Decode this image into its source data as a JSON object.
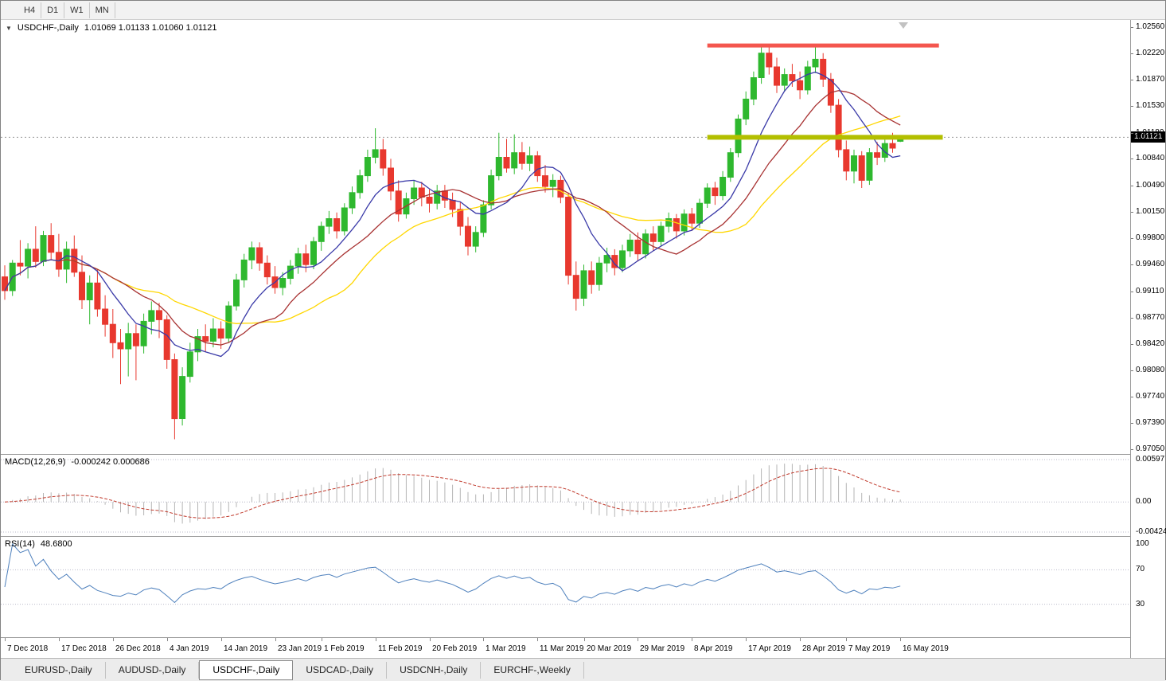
{
  "toolbar": {
    "buttons": [
      "H4",
      "D1",
      "W1",
      "MN"
    ]
  },
  "chart_title": {
    "dropdown_icon": "▼",
    "symbol": "USDCHF-,Daily",
    "ohlc": "1.01069 1.01133 1.01060 1.01121"
  },
  "price_axis": {
    "ticks": [
      "1.02560",
      "1.02220",
      "1.01870",
      "1.01530",
      "1.01180",
      "1.00840",
      "1.00490",
      "1.00150",
      "0.99800",
      "0.99460",
      "0.99110",
      "0.98770",
      "0.98420",
      "0.98080",
      "0.97740",
      "0.97390",
      "0.97050"
    ],
    "current_price": "1.01121"
  },
  "macd_panel": {
    "name": "MACD(12,26,9)",
    "values": "-0.000242 0.000686",
    "axis": [
      "0.00597",
      "0.00",
      "-0.00424"
    ]
  },
  "rsi_panel": {
    "name": "RSI(14)",
    "value": "48.6800",
    "axis": [
      "100",
      "70",
      "30"
    ]
  },
  "tabs": [
    {
      "label": "EURUSD-,Daily",
      "active": false
    },
    {
      "label": "AUDUSD-,Daily",
      "active": false
    },
    {
      "label": "USDCHF-,Daily",
      "active": true
    },
    {
      "label": "USDCAD-,Daily",
      "active": false
    },
    {
      "label": "USDCNH-,Daily",
      "active": false
    },
    {
      "label": "EURCHF-,Weekly",
      "active": false
    }
  ],
  "colors": {
    "bull": "#2eb82e",
    "bear": "#e8382e",
    "resistance": "#f4564e",
    "support": "#b3bf00",
    "ma_blue": "#3a3aa8",
    "ma_red": "#a83232",
    "ma_yellow": "#ffd700",
    "rsi": "#4f81bd",
    "macd_signal": "#c0392b",
    "macd_histogram": "#b5b5b5",
    "grid": "#b9b9c9"
  },
  "chart_data": {
    "type": "candlestick",
    "title": "USDCHF-,Daily",
    "symbol": "USDCHF",
    "timeframe": "Daily",
    "current_price": 1.01121,
    "last_ohlc": {
      "open": 1.01069,
      "high": 1.01133,
      "low": 1.0106,
      "close": 1.01121
    },
    "ylim": [
      0.9705,
      1.0256
    ],
    "grid": "current-price-line-only",
    "candles": [
      [
        0.993,
        0.9945,
        0.99,
        0.9912
      ],
      [
        0.9912,
        0.9952,
        0.9905,
        0.9948
      ],
      [
        0.9948,
        0.9978,
        0.9932,
        0.9944
      ],
      [
        0.9944,
        0.9974,
        0.9928,
        0.9966
      ],
      [
        0.9966,
        0.9996,
        0.9942,
        0.995
      ],
      [
        0.995,
        0.999,
        0.9944,
        0.9984
      ],
      [
        0.9984,
        1.0,
        0.9952,
        0.9962
      ],
      [
        0.9962,
        0.9986,
        0.993,
        0.994
      ],
      [
        0.994,
        0.9976,
        0.9922,
        0.9966
      ],
      [
        0.9966,
        0.9984,
        0.993,
        0.9936
      ],
      [
        0.9936,
        0.9958,
        0.9888,
        0.99
      ],
      [
        0.99,
        0.9932,
        0.9868,
        0.9922
      ],
      [
        0.9922,
        0.994,
        0.9878,
        0.9888
      ],
      [
        0.9888,
        0.9906,
        0.9852,
        0.9868
      ],
      [
        0.9868,
        0.9888,
        0.9824,
        0.9844
      ],
      [
        0.9844,
        0.9862,
        0.979,
        0.9836
      ],
      [
        0.9836,
        0.987,
        0.98,
        0.9856
      ],
      [
        0.9856,
        0.9868,
        0.9795,
        0.984
      ],
      [
        0.984,
        0.9882,
        0.983,
        0.9872
      ],
      [
        0.9872,
        0.9898,
        0.9855,
        0.9886
      ],
      [
        0.9886,
        0.9896,
        0.985,
        0.9874
      ],
      [
        0.9874,
        0.988,
        0.981,
        0.9822
      ],
      [
        0.9822,
        0.983,
        0.9718,
        0.9745
      ],
      [
        0.9745,
        0.9812,
        0.9736,
        0.98
      ],
      [
        0.98,
        0.9844,
        0.9792,
        0.9832
      ],
      [
        0.9832,
        0.9862,
        0.982,
        0.9852
      ],
      [
        0.9852,
        0.9868,
        0.9832,
        0.9846
      ],
      [
        0.9846,
        0.9876,
        0.9838,
        0.9862
      ],
      [
        0.9862,
        0.9872,
        0.9836,
        0.985
      ],
      [
        0.985,
        0.9898,
        0.9844,
        0.9892
      ],
      [
        0.9892,
        0.9934,
        0.9886,
        0.9926
      ],
      [
        0.9926,
        0.996,
        0.9916,
        0.9952
      ],
      [
        0.9952,
        0.9976,
        0.994,
        0.9968
      ],
      [
        0.9968,
        0.9975,
        0.9938,
        0.9948
      ],
      [
        0.9948,
        0.9958,
        0.992,
        0.993
      ],
      [
        0.993,
        0.9944,
        0.9908,
        0.9916
      ],
      [
        0.9916,
        0.9936,
        0.9906,
        0.9928
      ],
      [
        0.9928,
        0.9952,
        0.992,
        0.9944
      ],
      [
        0.9944,
        0.9968,
        0.9934,
        0.996
      ],
      [
        0.996,
        0.9972,
        0.9936,
        0.9946
      ],
      [
        0.9946,
        0.9982,
        0.994,
        0.9976
      ],
      [
        0.9976,
        1.0002,
        0.9964,
        0.9996
      ],
      [
        0.9996,
        1.0016,
        0.9986,
        1.0006
      ],
      [
        1.0006,
        1.0014,
        0.998,
        0.999
      ],
      [
        0.999,
        1.0026,
        0.9984,
        1.002
      ],
      [
        1.002,
        1.0048,
        1.0012,
        1.004
      ],
      [
        1.004,
        1.007,
        1.0032,
        1.0062
      ],
      [
        1.0062,
        1.0096,
        1.0054,
        1.0086
      ],
      [
        1.0086,
        1.0124,
        1.0078,
        1.0096
      ],
      [
        1.0096,
        1.011,
        1.0062,
        1.0072
      ],
      [
        1.0072,
        1.0084,
        1.003,
        1.0042
      ],
      [
        1.0042,
        1.0056,
        1.0002,
        1.0012
      ],
      [
        1.0012,
        1.004,
        1.0006,
        1.0032
      ],
      [
        1.0032,
        1.0056,
        1.0024,
        1.0046
      ],
      [
        1.0046,
        1.0054,
        1.0022,
        1.0034
      ],
      [
        1.0034,
        1.0044,
        1.0014,
        1.0026
      ],
      [
        1.0026,
        1.005,
        1.0018,
        1.0042
      ],
      [
        1.0042,
        1.005,
        1.002,
        1.003
      ],
      [
        1.003,
        1.004,
        1.0008,
        1.0018
      ],
      [
        1.0018,
        1.0028,
        0.9984,
        0.9996
      ],
      [
        0.9996,
        1.0008,
        0.9958,
        0.997
      ],
      [
        0.997,
        0.9996,
        0.9962,
        0.9988
      ],
      [
        0.9988,
        1.003,
        0.9982,
        1.0024
      ],
      [
        1.0024,
        1.007,
        1.0018,
        1.0062
      ],
      [
        1.0062,
        1.0118,
        1.0056,
        1.0086
      ],
      [
        1.0086,
        1.011,
        1.0066,
        1.0072
      ],
      [
        1.0072,
        1.0116,
        1.0064,
        1.0092
      ],
      [
        1.0092,
        1.0106,
        1.007,
        1.0078
      ],
      [
        1.0078,
        1.01,
        1.0068,
        1.0088
      ],
      [
        1.0088,
        1.0094,
        1.0054,
        1.0062
      ],
      [
        1.0062,
        1.0076,
        1.004,
        1.0048
      ],
      [
        1.0048,
        1.0064,
        1.0034,
        1.0056
      ],
      [
        1.0056,
        1.0062,
        1.0026,
        1.0034
      ],
      [
        1.0034,
        1.004,
        0.992,
        0.9932
      ],
      [
        0.9932,
        0.995,
        0.9886,
        0.9902
      ],
      [
        0.9902,
        0.9946,
        0.9892,
        0.9938
      ],
      [
        0.9938,
        0.995,
        0.9908,
        0.992
      ],
      [
        0.992,
        0.9956,
        0.9912,
        0.9948
      ],
      [
        0.9948,
        0.9968,
        0.9936,
        0.9958
      ],
      [
        0.9958,
        0.9966,
        0.9932,
        0.9942
      ],
      [
        0.9942,
        0.9972,
        0.9936,
        0.9964
      ],
      [
        0.9964,
        0.9986,
        0.9956,
        0.9978
      ],
      [
        0.9978,
        0.9988,
        0.995,
        0.996
      ],
      [
        0.996,
        0.9992,
        0.9954,
        0.9986
      ],
      [
        0.9986,
        0.9996,
        0.9964,
        0.9976
      ],
      [
        0.9976,
        1.0002,
        0.997,
        0.9996
      ],
      [
        0.9996,
        1.0014,
        0.9988,
        1.0006
      ],
      [
        1.0006,
        1.0012,
        0.998,
        0.999
      ],
      [
        0.999,
        1.0018,
        0.9984,
        1.0012
      ],
      [
        1.0012,
        1.002,
        0.999,
        1.0
      ],
      [
        1.0,
        1.0032,
        0.9994,
        1.0026
      ],
      [
        1.0026,
        1.0052,
        1.002,
        1.0046
      ],
      [
        1.0046,
        1.0054,
        1.0024,
        1.0036
      ],
      [
        1.0036,
        1.0068,
        1.003,
        1.006
      ],
      [
        1.006,
        1.0098,
        1.0054,
        1.0092
      ],
      [
        1.0092,
        1.0142,
        1.0086,
        1.0136
      ],
      [
        1.0136,
        1.0172,
        1.0128,
        1.0162
      ],
      [
        1.0162,
        1.0198,
        1.0154,
        1.019
      ],
      [
        1.019,
        1.0232,
        1.0182,
        1.0222
      ],
      [
        1.0222,
        1.023,
        1.0194,
        1.0204
      ],
      [
        1.0204,
        1.0216,
        1.017,
        1.018
      ],
      [
        1.018,
        1.0202,
        1.0172,
        1.0194
      ],
      [
        1.0194,
        1.0208,
        1.0178,
        1.0186
      ],
      [
        1.0186,
        1.0198,
        1.0162,
        1.0174
      ],
      [
        1.0174,
        1.0212,
        1.0168,
        1.0204
      ],
      [
        1.0204,
        1.023,
        1.0196,
        1.0214
      ],
      [
        1.0214,
        1.0222,
        1.0178,
        1.0188
      ],
      [
        1.0188,
        1.0196,
        1.0144,
        1.0154
      ],
      [
        1.0154,
        1.0162,
        1.0086,
        1.0096
      ],
      [
        1.0096,
        1.0108,
        1.0056,
        1.0068
      ],
      [
        1.0068,
        1.0096,
        1.0052,
        1.0088
      ],
      [
        1.0088,
        1.0094,
        1.0046,
        1.0056
      ],
      [
        1.0056,
        1.0098,
        1.005,
        1.0092
      ],
      [
        1.0092,
        1.0106,
        1.0076,
        1.0086
      ],
      [
        1.0086,
        1.011,
        1.008,
        1.0104
      ],
      [
        1.0104,
        1.0118,
        1.0092,
        1.0098
      ],
      [
        1.01069,
        1.01133,
        1.0106,
        1.01121
      ]
    ],
    "date_labels": [
      {
        "index": 0,
        "label": "7 Dec 2018"
      },
      {
        "index": 7,
        "label": "17 Dec 2018"
      },
      {
        "index": 14,
        "label": "26 Dec 2018"
      },
      {
        "index": 21,
        "label": "4 Jan 2019"
      },
      {
        "index": 28,
        "label": "14 Jan 2019"
      },
      {
        "index": 35,
        "label": "23 Jan 2019"
      },
      {
        "index": 41,
        "label": "1 Feb 2019"
      },
      {
        "index": 48,
        "label": "11 Feb 2019"
      },
      {
        "index": 55,
        "label": "20 Feb 2019"
      },
      {
        "index": 62,
        "label": "1 Mar 2019"
      },
      {
        "index": 69,
        "label": "11 Mar 2019"
      },
      {
        "index": 75,
        "label": "20 Mar 2019"
      },
      {
        "index": 82,
        "label": "29 Mar 2019"
      },
      {
        "index": 89,
        "label": "8 Apr 2019"
      },
      {
        "index": 96,
        "label": "17 Apr 2019"
      },
      {
        "index": 103,
        "label": "28 Apr 2019"
      },
      {
        "index": 109,
        "label": "7 May 2019"
      },
      {
        "index": 116,
        "label": "16 May 2019"
      }
    ],
    "overlays": {
      "resistance_line": {
        "price": 1.0232,
        "from_index": 91,
        "to_index": 121,
        "color": "#f4564e",
        "width": 5
      },
      "support_line": {
        "price": 1.01121,
        "from_index": 91,
        "to_index": 121.5,
        "color": "#b3bf00",
        "width": 6
      },
      "moving_averages": [
        {
          "type": "sma",
          "period": 24,
          "color": "#ffd700"
        },
        {
          "type": "sma",
          "period": 15,
          "color": "#a83232"
        },
        {
          "type": "sma",
          "period": 8,
          "color": "#3a3aa8"
        }
      ]
    },
    "indicators": {
      "macd": {
        "label": "MACD(12,26,9)",
        "fast": 12,
        "slow": 26,
        "signal": 9,
        "current_main": -0.000242,
        "current_signal": 0.000686,
        "range": [
          -0.00424,
          0.00597
        ]
      },
      "rsi": {
        "label": "RSI(14)",
        "period": 14,
        "current": 48.68,
        "levels": [
          70,
          30
        ],
        "range": [
          0,
          100
        ]
      }
    }
  }
}
